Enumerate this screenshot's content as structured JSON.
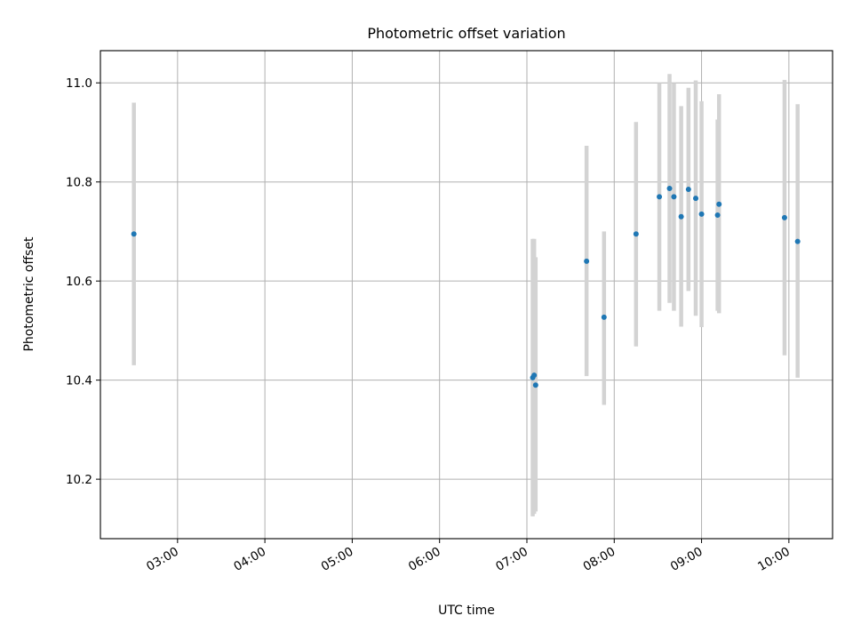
{
  "chart_data": {
    "type": "scatter",
    "title": "Photometric offset variation",
    "xlabel": "UTC time",
    "ylabel": "Photometric offset",
    "x_axis": "time",
    "xlim": [
      "02:07",
      "10:30"
    ],
    "ylim": [
      10.08,
      11.065
    ],
    "xticks": [
      "03:00",
      "04:00",
      "05:00",
      "06:00",
      "07:00",
      "08:00",
      "09:00",
      "10:00"
    ],
    "yticks": [
      10.2,
      10.4,
      10.6,
      10.8,
      11.0
    ],
    "yticks_labels": [
      "10.2",
      "10.4",
      "10.6",
      "10.8",
      "11.0"
    ],
    "grid": true,
    "errorbar_color": "#d3d3d3",
    "point_color": "#1f77b4",
    "series": [
      {
        "points": [
          {
            "x": "02:30",
            "y": 10.695,
            "lo": 10.43,
            "hi": 10.96
          },
          {
            "x": "07:04",
            "y": 10.405,
            "lo": 10.125,
            "hi": 10.685
          },
          {
            "x": "07:05",
            "y": 10.41,
            "lo": 10.13,
            "hi": 10.685
          },
          {
            "x": "07:06",
            "y": 10.39,
            "lo": 10.135,
            "hi": 10.648
          },
          {
            "x": "07:41",
            "y": 10.64,
            "lo": 10.408,
            "hi": 10.873
          },
          {
            "x": "07:53",
            "y": 10.527,
            "lo": 10.35,
            "hi": 10.7
          },
          {
            "x": "08:15",
            "y": 10.695,
            "lo": 10.468,
            "hi": 10.921
          },
          {
            "x": "08:31",
            "y": 10.77,
            "lo": 10.54,
            "hi": 11.0
          },
          {
            "x": "08:38",
            "y": 10.787,
            "lo": 10.556,
            "hi": 11.018
          },
          {
            "x": "08:41",
            "y": 10.77,
            "lo": 10.54,
            "hi": 11.0
          },
          {
            "x": "08:46",
            "y": 10.73,
            "lo": 10.508,
            "hi": 10.953
          },
          {
            "x": "08:51",
            "y": 10.785,
            "lo": 10.58,
            "hi": 10.99
          },
          {
            "x": "08:56",
            "y": 10.767,
            "lo": 10.53,
            "hi": 11.005
          },
          {
            "x": "09:00",
            "y": 10.735,
            "lo": 10.507,
            "hi": 10.963
          },
          {
            "x": "09:11",
            "y": 10.733,
            "lo": 10.54,
            "hi": 10.926
          },
          {
            "x": "09:12",
            "y": 10.755,
            "lo": 10.535,
            "hi": 10.977
          },
          {
            "x": "09:57",
            "y": 10.728,
            "lo": 10.45,
            "hi": 11.006
          },
          {
            "x": "10:06",
            "y": 10.68,
            "lo": 10.405,
            "hi": 10.957
          }
        ]
      }
    ]
  }
}
